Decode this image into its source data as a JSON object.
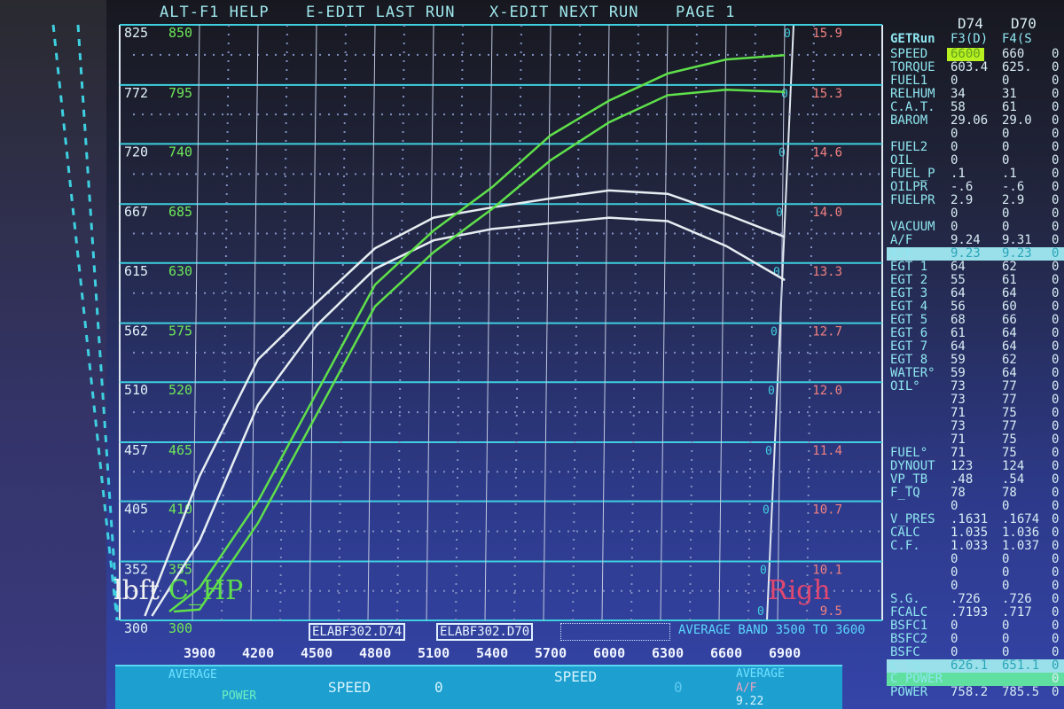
{
  "menu": {
    "help": "ALT-F1 HELP",
    "edit_last": "E-EDIT LAST RUN",
    "edit_next": "X-EDIT NEXT RUN",
    "page": "PAGE 1"
  },
  "chart_data": {
    "type": "line",
    "xlabel": "",
    "x_ticks": [
      3900,
      4200,
      4500,
      4800,
      5100,
      5400,
      5700,
      6000,
      6300,
      6600,
      6900
    ],
    "x": [
      3900,
      4200,
      4500,
      4800,
      5100,
      5400,
      5700,
      6000,
      6300,
      6600,
      6900
    ],
    "xlim": [
      3600,
      7100
    ],
    "y_left_torque": {
      "label": "lbft",
      "ticks": [
        300,
        352,
        405,
        457,
        510,
        562,
        615,
        667,
        720,
        772,
        825
      ],
      "ylim": [
        300,
        825
      ]
    },
    "y_left_hp": {
      "label": "C_HP",
      "ticks": [
        300,
        355,
        410,
        465,
        520,
        575,
        630,
        685,
        740,
        795,
        850
      ],
      "ylim": [
        300,
        850
      ]
    },
    "y_right_af": {
      "ticks": [
        9.5,
        10.1,
        10.7,
        11.4,
        12.0,
        12.7,
        13.3,
        14.0,
        14.6,
        15.3,
        15.9
      ],
      "ylim": [
        9.5,
        15.9
      ],
      "zero_marks": "0"
    },
    "series": [
      {
        "name": "ELABF302.D74",
        "kind": "torque",
        "color": "#e6eef2",
        "values": [
          427,
          530,
          580,
          628,
          655,
          664,
          672,
          679,
          676,
          658,
          638
        ]
      },
      {
        "name": "ELABF302.D70",
        "kind": "torque",
        "color": "#e6eef2",
        "values": [
          370,
          490,
          560,
          610,
          635,
          645,
          650,
          655,
          652,
          630,
          600
        ]
      },
      {
        "name": "ELABF302.D74",
        "kind": "hp",
        "color": "#5fe04a",
        "values": [
          330,
          410,
          510,
          610,
          660,
          700,
          748,
          780,
          805,
          818,
          822
        ]
      },
      {
        "name": "ELABF302.D70",
        "kind": "hp",
        "color": "#5fe04a",
        "values": [
          310,
          390,
          490,
          590,
          640,
          680,
          725,
          760,
          785,
          790,
          788
        ]
      }
    ],
    "legend": [
      "ELABF302.D74",
      "ELABF302.D70"
    ],
    "average_band": "AVERAGE BAND 3500 TO 3600",
    "side_label": "Righ",
    "grid": true
  },
  "panel": {
    "headers": [
      "D74",
      "D70"
    ],
    "getrun": [
      "GETRun",
      "F3(D)",
      "F4(S"
    ],
    "rows": [
      [
        "SPEED",
        "6600",
        "660"
      ],
      [
        "TORQUE",
        "603.4",
        "625."
      ],
      [
        "FUEL1",
        "0",
        "0"
      ],
      [
        "RELHUM",
        "34",
        "31"
      ],
      [
        "C.A.T.",
        "58",
        "61"
      ],
      [
        "BAROM",
        "29.06",
        "29.0"
      ],
      [
        "",
        "0",
        "0"
      ],
      [
        "FUEL2",
        "0",
        "0"
      ],
      [
        "OIL",
        "0",
        "0"
      ],
      [
        "FUEL_P",
        ".1",
        ".1"
      ],
      [
        "OILPR",
        "-.6",
        "-.6"
      ],
      [
        "FUELPR",
        "2.9",
        "2.9"
      ],
      [
        "",
        "0",
        "0"
      ],
      [
        "VACUUM",
        "0",
        "0"
      ],
      [
        "A/F",
        "9.24",
        "9.31"
      ],
      [
        "A/F",
        "9.23",
        "9.23"
      ],
      [
        "EGT 1",
        "64",
        "62"
      ],
      [
        "EGT 2",
        "55",
        "61"
      ],
      [
        "EGT 3",
        "64",
        "64"
      ],
      [
        "EGT 4",
        "56",
        "60"
      ],
      [
        "EGT 5",
        "68",
        "66"
      ],
      [
        "EGT 6",
        "61",
        "64"
      ],
      [
        "EGT 7",
        "64",
        "64"
      ],
      [
        "EGT 8",
        "59",
        "62"
      ],
      [
        "WATER°",
        "59",
        "64"
      ],
      [
        "OIL°",
        "73",
        "77"
      ],
      [
        "",
        "73",
        "77"
      ],
      [
        "",
        "71",
        "75"
      ],
      [
        "",
        "73",
        "77"
      ],
      [
        "",
        "71",
        "75"
      ],
      [
        "FUEL°",
        "71",
        "75"
      ],
      [
        "DYNOUT",
        "123",
        "124"
      ],
      [
        "VP_TB",
        ".48",
        ".54"
      ],
      [
        "F_TQ",
        "78",
        "78"
      ],
      [
        "",
        "0",
        "0"
      ],
      [
        "V_PRES",
        ".1631",
        ".1674"
      ],
      [
        "CALC",
        "1.035",
        "1.036"
      ],
      [
        "C.F.",
        "1.033",
        "1.037"
      ],
      [
        "",
        "0",
        "0"
      ],
      [
        "",
        "0",
        "0"
      ],
      [
        "",
        "0",
        "0"
      ],
      [
        "S.G.",
        ".726",
        ".726"
      ],
      [
        "FCALC",
        ".7193",
        ".717"
      ],
      [
        "BSFC1",
        "0",
        "0"
      ],
      [
        "BSFC2",
        "0",
        "0"
      ],
      [
        "BSFC",
        "0",
        "0"
      ],
      [
        "C_TQ",
        "626.1",
        "651.1"
      ],
      [
        "C_POWER",
        "",
        ""
      ],
      [
        "POWER",
        "758.2",
        "785.5"
      ]
    ],
    "third_col": "0"
  },
  "bottom": {
    "average": "AVERAGE",
    "power": "POWER",
    "speed": "SPEED",
    "speed_val": "0",
    "speed2": "SPEED",
    "zero": "0",
    "average2": "AVERAGE",
    "af": "A/F",
    "af_val": "9.22"
  }
}
